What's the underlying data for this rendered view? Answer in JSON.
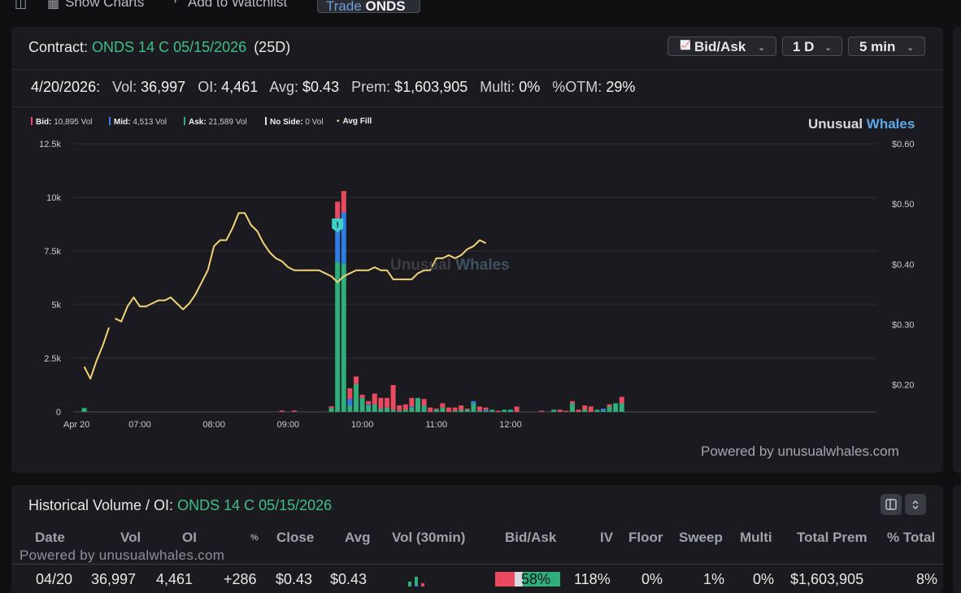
{
  "topbar": {
    "show_charts": "Show Charts",
    "add_watchlist": "Add to Watchlist",
    "trade_word": "Trade",
    "trade_symbol": "ONDS"
  },
  "contract": {
    "label": "Contract:",
    "name": "ONDS 14 C 05/15/2026",
    "dte": "(25D)"
  },
  "controls": {
    "bidask": "Bid/Ask",
    "range": "1 D",
    "interval": "5 min"
  },
  "stats": {
    "date": "4/20/2026:",
    "vol_label": "Vol:",
    "vol": "36,997",
    "oi_label": "OI:",
    "oi": "4,461",
    "avg_label": "Avg:",
    "avg": "$0.43",
    "prem_label": "Prem:",
    "prem": "$1,603,905",
    "multi_label": "Multi:",
    "multi": "0%",
    "otm_label": "%OTM:",
    "otm": "29%"
  },
  "legend": {
    "bid_label": "Bid:",
    "bid": "10,895 Vol",
    "mid_label": "Mid:",
    "mid": "4,513 Vol",
    "ask_label": "Ask:",
    "ask": "21,589 Vol",
    "noside_label": "No Side:",
    "noside": "0 Vol",
    "avgfill_label": "Avg Fill"
  },
  "brand": {
    "a": "Unusual",
    "b": "Whales"
  },
  "powered": "Powered by unusualwhales.com",
  "colors": {
    "bid": "#e84a5f",
    "mid": "#2f7de1",
    "ask": "#2fae7c",
    "avg_fill": "#f2d27a",
    "accent_green": "#3fbf8a"
  },
  "chart_data": {
    "type": "bar",
    "title": "",
    "x_ticks": [
      "Apr 20",
      "07:00",
      "08:00",
      "09:00",
      "10:00",
      "11:00",
      "12:00"
    ],
    "y_left_ticks": [
      "0",
      "2.5k",
      "5k",
      "7.5k",
      "10k",
      "12.5k"
    ],
    "y_left_lim": [
      0,
      12500
    ],
    "y_right_ticks": [
      "$0.20",
      "$0.30",
      "$0.40",
      "$0.50",
      "$0.60"
    ],
    "y_right_lim": [
      0.155,
      0.6
    ],
    "grid": true,
    "legend_position": "top-left",
    "x_unit": "minutes since 06:30",
    "bars": [
      {
        "t": 5,
        "bid": 0,
        "mid": 0,
        "ask": 180
      },
      {
        "t": 165,
        "bid": 60,
        "mid": 0,
        "ask": 0
      },
      {
        "t": 175,
        "bid": 60,
        "mid": 0,
        "ask": 0
      },
      {
        "t": 205,
        "bid": 80,
        "mid": 0,
        "ask": 180
      },
      {
        "t": 210,
        "bid": 1300,
        "mid": 1500,
        "ask": 7000
      },
      {
        "t": 215,
        "bid": 1000,
        "mid": 2400,
        "ask": 6900
      },
      {
        "t": 220,
        "bid": 500,
        "mid": 300,
        "ask": 300
      },
      {
        "t": 225,
        "bid": 350,
        "mid": 0,
        "ask": 1300
      },
      {
        "t": 230,
        "bid": 150,
        "mid": 0,
        "ask": 650
      },
      {
        "t": 235,
        "bid": 150,
        "mid": 50,
        "ask": 300
      },
      {
        "t": 240,
        "bid": 500,
        "mid": 0,
        "ask": 350
      },
      {
        "t": 245,
        "bid": 500,
        "mid": 0,
        "ask": 150
      },
      {
        "t": 250,
        "bid": 450,
        "mid": 0,
        "ask": 200
      },
      {
        "t": 255,
        "bid": 1150,
        "mid": 0,
        "ask": 100
      },
      {
        "t": 260,
        "bid": 250,
        "mid": 0,
        "ask": 50
      },
      {
        "t": 265,
        "bid": 250,
        "mid": 0,
        "ask": 100
      },
      {
        "t": 270,
        "bid": 400,
        "mid": 50,
        "ask": 200
      },
      {
        "t": 275,
        "bid": 0,
        "mid": 0,
        "ask": 650
      },
      {
        "t": 280,
        "bid": 300,
        "mid": 0,
        "ask": 300
      },
      {
        "t": 285,
        "bid": 200,
        "mid": 0,
        "ask": 0
      },
      {
        "t": 290,
        "bid": 50,
        "mid": 0,
        "ask": 100
      },
      {
        "t": 295,
        "bid": 200,
        "mid": 0,
        "ask": 200
      },
      {
        "t": 300,
        "bid": 200,
        "mid": 0,
        "ask": 0
      },
      {
        "t": 305,
        "bid": 150,
        "mid": 0,
        "ask": 50
      },
      {
        "t": 310,
        "bid": 200,
        "mid": 0,
        "ask": 100
      },
      {
        "t": 315,
        "bid": 50,
        "mid": 0,
        "ask": 100
      },
      {
        "t": 320,
        "bid": 0,
        "mid": 100,
        "ask": 400
      },
      {
        "t": 325,
        "bid": 200,
        "mid": 0,
        "ask": 50
      },
      {
        "t": 330,
        "bid": 100,
        "mid": 50,
        "ask": 50
      },
      {
        "t": 335,
        "bid": 0,
        "mid": 0,
        "ask": 100
      },
      {
        "t": 340,
        "bid": 50,
        "mid": 0,
        "ask": 0
      },
      {
        "t": 345,
        "bid": 0,
        "mid": 0,
        "ask": 100
      },
      {
        "t": 350,
        "bid": 0,
        "mid": 0,
        "ask": 100
      },
      {
        "t": 355,
        "bid": 250,
        "mid": 0,
        "ask": 0
      },
      {
        "t": 375,
        "bid": 50,
        "mid": 0,
        "ask": 0
      },
      {
        "t": 385,
        "bid": 0,
        "mid": 0,
        "ask": 100
      },
      {
        "t": 390,
        "bid": 100,
        "mid": 0,
        "ask": 0
      },
      {
        "t": 395,
        "bid": 50,
        "mid": 0,
        "ask": 0
      },
      {
        "t": 400,
        "bid": 100,
        "mid": 0,
        "ask": 400
      },
      {
        "t": 405,
        "bid": 100,
        "mid": 0,
        "ask": 0
      },
      {
        "t": 410,
        "bid": 200,
        "mid": 0,
        "ask": 100
      },
      {
        "t": 415,
        "bid": 250,
        "mid": 0,
        "ask": 0
      },
      {
        "t": 420,
        "bid": 0,
        "mid": 0,
        "ask": 100
      },
      {
        "t": 425,
        "bid": 0,
        "mid": 100,
        "ask": 50
      },
      {
        "t": 430,
        "bid": 100,
        "mid": 0,
        "ask": 250
      },
      {
        "t": 435,
        "bid": 0,
        "mid": 0,
        "ask": 400
      },
      {
        "t": 440,
        "bid": 300,
        "mid": 0,
        "ask": 400
      }
    ],
    "avg_fill_segments": [
      [
        [
          5,
          0.23
        ],
        [
          10,
          0.21
        ],
        [
          15,
          0.24
        ],
        [
          20,
          0.265
        ],
        [
          25,
          0.295
        ]
      ],
      [
        [
          30,
          0.31
        ],
        [
          35,
          0.305
        ],
        [
          40,
          0.33
        ],
        [
          45,
          0.345
        ],
        [
          50,
          0.33
        ],
        [
          55,
          0.33
        ],
        [
          60,
          0.335
        ],
        [
          65,
          0.34
        ],
        [
          70,
          0.34
        ],
        [
          75,
          0.345
        ],
        [
          80,
          0.335
        ],
        [
          85,
          0.325
        ],
        [
          90,
          0.335
        ],
        [
          95,
          0.35
        ],
        [
          100,
          0.37
        ],
        [
          105,
          0.39
        ],
        [
          110,
          0.43
        ],
        [
          115,
          0.44
        ],
        [
          120,
          0.44
        ],
        [
          125,
          0.46
        ],
        [
          130,
          0.485
        ],
        [
          135,
          0.485
        ],
        [
          140,
          0.465
        ],
        [
          145,
          0.455
        ],
        [
          150,
          0.435
        ],
        [
          155,
          0.42
        ],
        [
          160,
          0.41
        ],
        [
          165,
          0.405
        ],
        [
          170,
          0.395
        ],
        [
          175,
          0.39
        ],
        [
          180,
          0.39
        ],
        [
          185,
          0.39
        ],
        [
          190,
          0.39
        ],
        [
          195,
          0.39
        ],
        [
          200,
          0.385
        ],
        [
          205,
          0.38
        ],
        [
          210,
          0.37
        ],
        [
          215,
          0.38
        ],
        [
          220,
          0.385
        ],
        [
          225,
          0.39
        ],
        [
          230,
          0.39
        ],
        [
          235,
          0.39
        ],
        [
          240,
          0.395
        ],
        [
          245,
          0.39
        ],
        [
          250,
          0.39
        ],
        [
          255,
          0.375
        ],
        [
          260,
          0.375
        ],
        [
          265,
          0.375
        ],
        [
          270,
          0.375
        ],
        [
          275,
          0.385
        ],
        [
          280,
          0.39
        ],
        [
          285,
          0.39
        ],
        [
          290,
          0.41
        ],
        [
          295,
          0.41
        ],
        [
          300,
          0.415
        ],
        [
          305,
          0.41
        ],
        [
          310,
          0.415
        ],
        [
          315,
          0.425
        ],
        [
          320,
          0.43
        ],
        [
          325,
          0.44
        ],
        [
          330,
          0.435
        ]
      ]
    ],
    "marker": {
      "t": 210,
      "label": "!"
    }
  },
  "history": {
    "title_label": "Historical Volume / OI:",
    "title_contract": "ONDS 14 C 05/15/2026",
    "headers": [
      "Date",
      "Vol",
      "OI",
      "%",
      "Close",
      "Avg",
      "Vol (30min)",
      "Bid/Ask",
      "IV",
      "Floor",
      "Sweep",
      "Multi",
      "Total Prem",
      "% Total"
    ],
    "row": {
      "date": "04/20",
      "vol": "36,997",
      "oi": "4,461",
      "oi_change": "+286",
      "close": "$0.43",
      "avg": "$0.43",
      "bidask_pct": "58%",
      "iv": "118%",
      "floor": "0%",
      "sweep": "1%",
      "multi": "0%",
      "total_prem": "$1,603,905",
      "pct_total": "8%"
    },
    "powered": "Powered by unusualwhales.com"
  }
}
